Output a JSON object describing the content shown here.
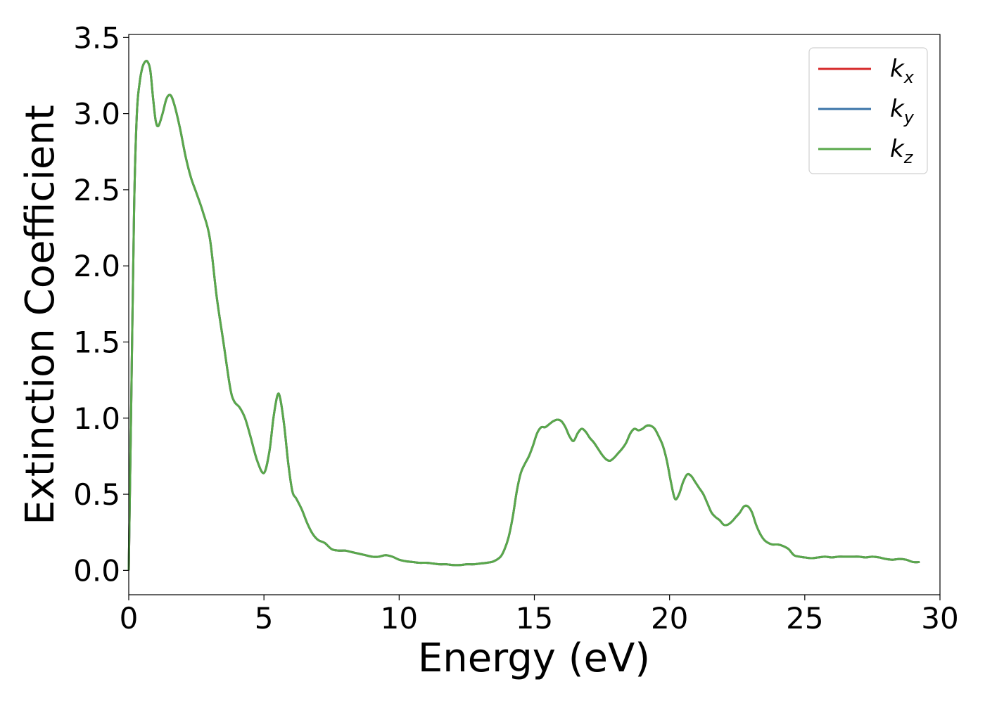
{
  "chart_data": {
    "type": "line",
    "title": "",
    "xlabel": "Energy (eV)",
    "ylabel": "Extinction Coefficient",
    "xlim": [
      0,
      30
    ],
    "ylim": [
      -0.16,
      3.52
    ],
    "xticks": [
      0,
      5,
      10,
      15,
      20,
      25,
      30
    ],
    "xtick_labels": [
      "0",
      "5",
      "10",
      "15",
      "20",
      "25",
      "30"
    ],
    "yticks": [
      0,
      0.5,
      1,
      1.5,
      2,
      2.5,
      3,
      3.5
    ],
    "ytick_labels": [
      "0.0",
      "0.5",
      "1.0",
      "1.5",
      "2.0",
      "2.5",
      "3.0",
      "3.5"
    ],
    "grid": false,
    "legend_position": "top-right",
    "x": [
      0,
      0.1,
      0.2,
      0.3,
      0.4,
      0.5,
      0.6,
      0.7,
      0.8,
      0.9,
      1.0,
      1.1,
      1.25,
      1.4,
      1.55,
      1.7,
      1.9,
      2.1,
      2.3,
      2.5,
      2.75,
      3.0,
      3.25,
      3.5,
      3.75,
      3.9,
      4.1,
      4.3,
      4.5,
      4.75,
      5.0,
      5.2,
      5.35,
      5.5,
      5.6,
      5.75,
      5.9,
      6.05,
      6.2,
      6.4,
      6.6,
      6.8,
      7.0,
      7.25,
      7.5,
      7.75,
      8.0,
      8.25,
      8.5,
      8.75,
      9.0,
      9.25,
      9.5,
      9.75,
      10.0,
      10.25,
      10.5,
      10.75,
      11.0,
      11.25,
      11.5,
      11.75,
      12.0,
      12.25,
      12.5,
      12.75,
      13.0,
      13.25,
      13.5,
      13.75,
      13.9,
      14.05,
      14.2,
      14.35,
      14.5,
      14.65,
      14.8,
      14.95,
      15.1,
      15.25,
      15.4,
      15.55,
      15.7,
      15.85,
      16.0,
      16.15,
      16.3,
      16.45,
      16.6,
      16.75,
      16.9,
      17.05,
      17.2,
      17.35,
      17.5,
      17.65,
      17.8,
      17.95,
      18.1,
      18.25,
      18.4,
      18.55,
      18.7,
      18.85,
      19.0,
      19.15,
      19.3,
      19.45,
      19.6,
      19.75,
      19.9,
      20.05,
      20.2,
      20.35,
      20.5,
      20.65,
      20.8,
      20.95,
      21.1,
      21.25,
      21.4,
      21.55,
      21.7,
      21.85,
      22.0,
      22.15,
      22.3,
      22.45,
      22.6,
      22.75,
      22.9,
      23.05,
      23.2,
      23.35,
      23.5,
      23.65,
      23.8,
      24.0,
      24.2,
      24.4,
      24.6,
      24.8,
      25.0,
      25.25,
      25.5,
      25.75,
      26.0,
      26.25,
      26.5,
      26.75,
      27.0,
      27.25,
      27.5,
      27.75,
      28.0,
      28.25,
      28.5,
      28.75,
      29.0,
      29.25,
      29.5,
      29.75,
      30.0
    ],
    "series_y": [
      0.0,
      1.2,
      2.4,
      3.0,
      3.2,
      3.3,
      3.34,
      3.34,
      3.28,
      3.1,
      2.95,
      2.92,
      3.0,
      3.1,
      3.12,
      3.05,
      2.9,
      2.72,
      2.58,
      2.48,
      2.35,
      2.18,
      1.8,
      1.5,
      1.2,
      1.11,
      1.07,
      1.0,
      0.88,
      0.72,
      0.64,
      0.78,
      1.0,
      1.15,
      1.13,
      0.95,
      0.7,
      0.52,
      0.47,
      0.4,
      0.31,
      0.24,
      0.2,
      0.18,
      0.14,
      0.13,
      0.13,
      0.12,
      0.11,
      0.1,
      0.09,
      0.09,
      0.1,
      0.09,
      0.07,
      0.06,
      0.055,
      0.05,
      0.05,
      0.045,
      0.04,
      0.04,
      0.035,
      0.035,
      0.04,
      0.04,
      0.045,
      0.05,
      0.06,
      0.09,
      0.14,
      0.22,
      0.35,
      0.52,
      0.64,
      0.7,
      0.75,
      0.82,
      0.9,
      0.94,
      0.94,
      0.96,
      0.98,
      0.99,
      0.98,
      0.94,
      0.88,
      0.85,
      0.9,
      0.93,
      0.91,
      0.87,
      0.84,
      0.8,
      0.76,
      0.73,
      0.72,
      0.74,
      0.77,
      0.8,
      0.84,
      0.9,
      0.93,
      0.92,
      0.93,
      0.95,
      0.95,
      0.93,
      0.88,
      0.82,
      0.72,
      0.58,
      0.47,
      0.5,
      0.58,
      0.63,
      0.62,
      0.58,
      0.54,
      0.5,
      0.44,
      0.38,
      0.35,
      0.33,
      0.3,
      0.3,
      0.32,
      0.35,
      0.38,
      0.42,
      0.42,
      0.38,
      0.3,
      0.24,
      0.2,
      0.18,
      0.17,
      0.17,
      0.16,
      0.14,
      0.1,
      0.09,
      0.085,
      0.08,
      0.085,
      0.09,
      0.085,
      0.09,
      0.09,
      0.09,
      0.09,
      0.085,
      0.09,
      0.085,
      0.075,
      0.07,
      0.075,
      0.07,
      0.055,
      0.055,
      0.065
    ],
    "series": [
      {
        "name": "k",
        "sub": "x",
        "color": "#d62728"
      },
      {
        "name": "k",
        "sub": "y",
        "color": "#3a74a8"
      },
      {
        "name": "k",
        "sub": "z",
        "color": "#59a84b"
      }
    ]
  }
}
